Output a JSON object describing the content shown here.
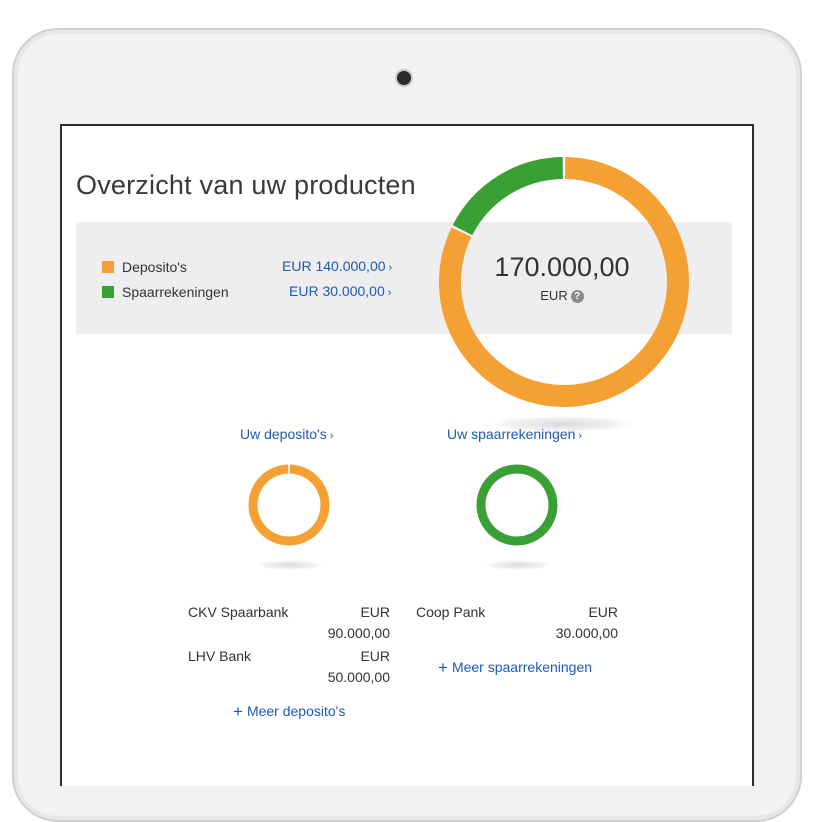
{
  "page_title": "Overzicht van uw producten",
  "summary": {
    "legend": [
      {
        "label": "Deposito's",
        "amount": "EUR 140.000,00",
        "color": "#f5a033"
      },
      {
        "label": "Spaarrekeningen",
        "amount": "EUR 30.000,00",
        "color": "#3aa035"
      }
    ],
    "chevron": "›",
    "total": "170.000,00",
    "currency": "EUR",
    "help_icon": "?"
  },
  "chart_data": {
    "type": "pie",
    "categories": [
      "Deposito's",
      "Spaarrekeningen"
    ],
    "values": [
      140000,
      30000
    ],
    "colors": [
      "#f5a033",
      "#3aa035"
    ]
  },
  "deposits": {
    "link": "Uw deposito's",
    "chevron": "›",
    "donut_value": 1,
    "color": "#f5a033",
    "items": [
      {
        "name": "CKV Spaarbank",
        "currency": "EUR",
        "value": "90.000,00"
      },
      {
        "name": "LHV Bank",
        "currency": "EUR",
        "value": "50.000,00"
      }
    ],
    "more": "Meer deposito's"
  },
  "savings": {
    "link": "Uw spaarrekeningen",
    "chevron": "›",
    "donut_value": 1,
    "color": "#3aa035",
    "items": [
      {
        "name": "Coop Pank",
        "currency": "EUR",
        "value": "30.000,00"
      }
    ],
    "more": "Meer spaarrekeningen"
  },
  "plus_icon": "+"
}
